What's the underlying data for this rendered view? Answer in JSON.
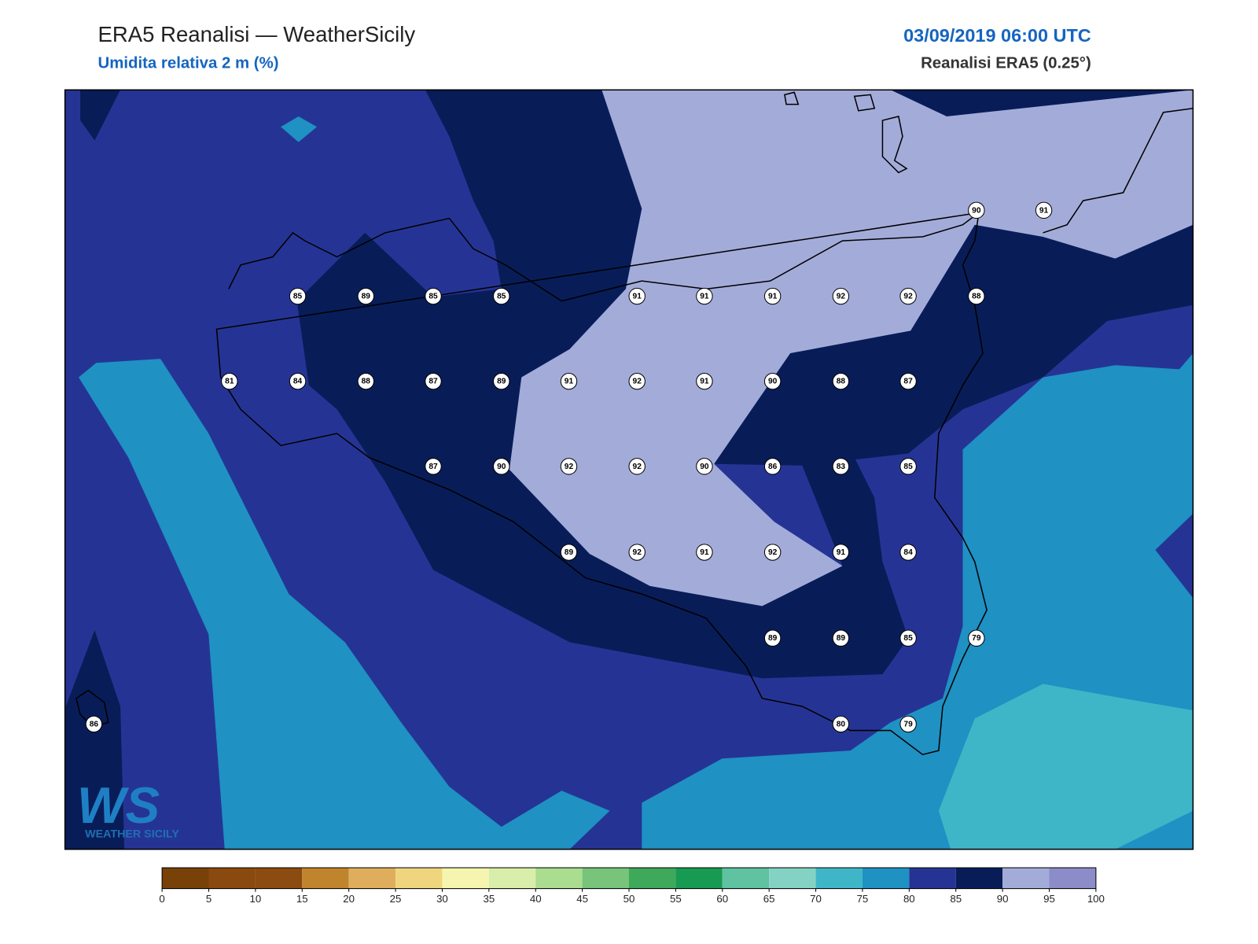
{
  "header": {
    "title": "ERA5 Reanalisi — WeatherSicily",
    "subtitle": "Umidita relativa 2 m (%)",
    "date": "03/09/2019 06:00 UTC",
    "source": "Reanalisi ERA5 (0.25°)"
  },
  "logo": {
    "mark": "WS",
    "text": "WEATHER SICILY"
  },
  "stations": [
    90,
    91,
    85,
    89,
    85,
    85,
    91,
    91,
    91,
    92,
    92,
    88,
    81,
    84,
    88,
    87,
    89,
    91,
    92,
    91,
    90,
    88,
    87,
    87,
    90,
    92,
    92,
    90,
    86,
    83,
    85,
    89,
    92,
    91,
    92,
    91,
    84,
    89,
    89,
    85,
    79,
    86,
    80,
    79
  ],
  "colorbar": {
    "ticks": [
      0,
      5,
      10,
      15,
      20,
      25,
      30,
      35,
      40,
      45,
      50,
      55,
      60,
      65,
      70,
      75,
      80,
      85,
      90,
      95,
      100
    ],
    "colors": [
      "#774108",
      "#8a490e",
      "#8c4b10",
      "#c0842c",
      "#dfae5d",
      "#f0d57f",
      "#f6f5b0",
      "#d9eeaa",
      "#aadd90",
      "#77c47a",
      "#3ea95b",
      "#179a52",
      "#5fc2a0",
      "#84d2c4",
      "#3fb6c8",
      "#1f91c3",
      "#253494",
      "#081d58",
      "#a3acd9",
      "#8c8cc8"
    ]
  }
}
